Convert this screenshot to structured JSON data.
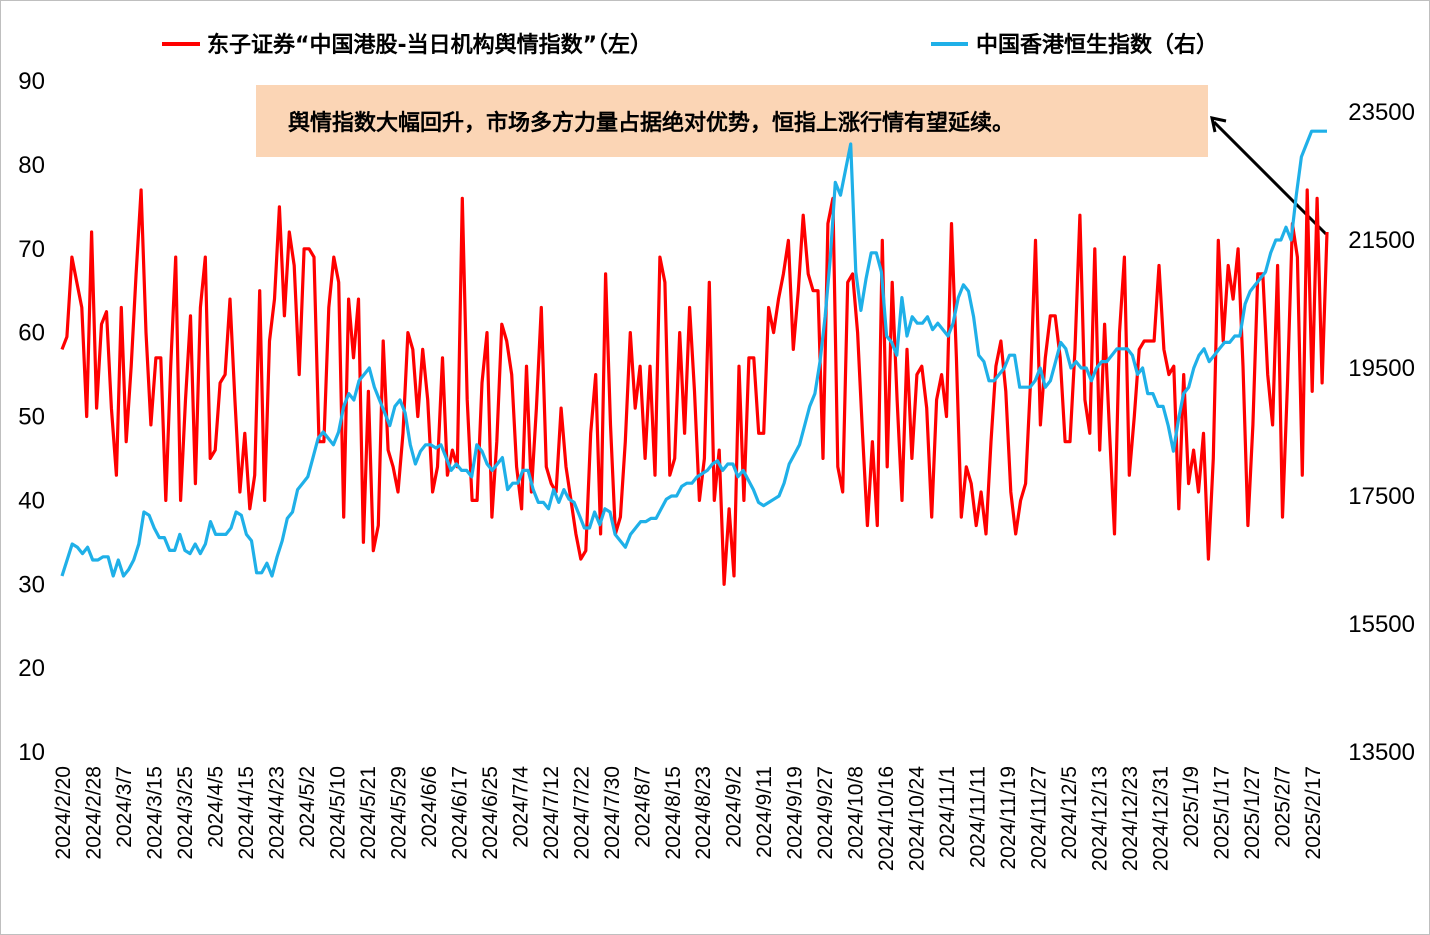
{
  "chart_data": {
    "type": "line",
    "title": "",
    "xlabel": "",
    "ylabel_left": "",
    "ylabel_right": "",
    "ylim_left": [
      10,
      90
    ],
    "yticks_left": [
      10,
      20,
      30,
      40,
      50,
      60,
      70,
      80,
      90
    ],
    "ylim_right": [
      13500,
      23500
    ],
    "yticks_right": [
      13500,
      15500,
      17500,
      19500,
      21500,
      23500
    ],
    "grid": false,
    "legend_position": "top",
    "x_tick_labels": [
      "2024/2/20",
      "2024/2/28",
      "2024/3/7",
      "2024/3/15",
      "2024/3/25",
      "2024/4/5",
      "2024/4/15",
      "2024/4/23",
      "2024/5/2",
      "2024/5/10",
      "2024/5/21",
      "2024/5/29",
      "2024/6/6",
      "2024/6/17",
      "2024/6/25",
      "2024/7/4",
      "2024/7/12",
      "2024/7/22",
      "2024/7/30",
      "2024/8/7",
      "2024/8/15",
      "2024/8/23",
      "2024/9/2",
      "2024/9/11",
      "2024/9/19",
      "2024/9/27",
      "2024/10/8",
      "2024/10/16",
      "2024/10/24",
      "2024/11/1",
      "2024/11/11",
      "2024/11/19",
      "2024/11/27",
      "2024/12/5",
      "2024/12/13",
      "2024/12/23",
      "2024/12/31",
      "2025/1/9",
      "2025/1/17",
      "2025/1/27",
      "2025/2/7",
      "2025/2/17"
    ],
    "series": [
      {
        "name": "东子证券“中国港股-当日机构舆情指数”（左）",
        "axis": "left",
        "color": "#ff0000",
        "values": [
          58,
          59.5,
          69,
          66,
          63,
          50,
          72,
          51,
          61,
          62.5,
          51,
          43,
          63,
          47,
          56,
          67,
          77,
          60,
          49,
          57,
          57,
          40,
          56,
          69,
          40,
          52,
          62,
          42,
          63,
          69,
          45,
          46,
          54,
          55,
          64,
          52,
          41,
          48,
          39,
          43,
          65,
          40,
          59,
          64,
          75,
          62,
          72,
          68,
          55,
          70,
          70,
          69,
          47,
          47,
          63,
          69,
          66,
          38,
          64,
          57,
          64,
          35,
          53,
          34,
          37,
          59,
          46,
          44,
          41,
          48,
          60,
          58,
          50,
          58,
          52,
          41,
          44,
          57,
          43,
          46,
          44,
          76,
          52,
          40,
          40,
          54,
          60,
          38,
          47,
          61,
          59,
          55,
          44,
          39,
          56,
          41,
          51,
          63,
          44,
          42,
          41,
          51,
          44,
          40,
          36,
          33,
          34,
          48,
          55,
          36,
          67,
          49,
          36,
          38,
          47,
          60,
          51,
          56,
          45,
          56,
          43,
          69,
          66,
          43,
          45,
          60,
          48,
          63,
          53,
          40,
          45,
          66,
          40,
          46,
          30,
          39,
          31,
          56,
          40,
          57,
          57,
          48,
          48,
          63,
          60,
          64,
          67,
          71,
          58,
          65,
          74,
          67,
          65,
          65,
          45,
          73,
          76,
          44,
          41,
          66,
          67,
          60,
          48,
          37,
          47,
          37,
          71,
          44,
          66,
          52,
          40,
          58,
          45,
          55,
          56,
          51,
          38,
          52,
          55,
          50,
          73,
          57,
          38,
          44,
          42,
          37,
          41,
          36,
          47,
          56,
          59,
          53,
          41,
          36,
          40,
          42,
          54,
          71,
          49,
          57,
          62,
          62,
          57,
          47,
          47,
          58,
          74,
          52,
          48,
          70,
          46,
          61,
          48,
          36,
          60,
          69,
          43,
          50,
          58,
          59,
          59,
          59,
          68,
          58,
          55,
          56,
          39,
          55,
          42,
          46,
          41,
          48,
          33,
          45,
          71,
          59,
          68,
          64,
          70,
          56,
          37,
          49,
          67,
          67,
          55,
          49,
          68,
          38,
          54,
          73,
          69,
          43,
          77,
          53,
          76,
          54,
          72
        ]
      },
      {
        "name": "中国香港恒生指数（右）",
        "axis": "right",
        "color": "#1fb0e8",
        "values": [
          16250,
          16500,
          16750,
          16700,
          16600,
          16700,
          16500,
          16500,
          16550,
          16550,
          16250,
          16500,
          16250,
          16350,
          16500,
          16750,
          17250,
          17200,
          17000,
          16850,
          16850,
          16650,
          16650,
          16900,
          16650,
          16600,
          16750,
          16600,
          16750,
          17100,
          16900,
          16900,
          16900,
          17000,
          17250,
          17200,
          16900,
          16800,
          16300,
          16300,
          16450,
          16250,
          16550,
          16800,
          17150,
          17250,
          17600,
          17700,
          17800,
          18100,
          18400,
          18500,
          18400,
          18300,
          18500,
          18900,
          19100,
          19000,
          19300,
          19400,
          19500,
          19200,
          19000,
          18800,
          18600,
          18900,
          19000,
          18800,
          18300,
          18000,
          18200,
          18300,
          18300,
          18250,
          18300,
          18100,
          17900,
          18000,
          17900,
          17900,
          17800,
          18300,
          18200,
          18000,
          17900,
          18000,
          18100,
          17600,
          17700,
          17700,
          17900,
          17900,
          17600,
          17400,
          17400,
          17300,
          17600,
          17400,
          17600,
          17450,
          17400,
          17200,
          17000,
          17000,
          17250,
          17050,
          17300,
          17250,
          16900,
          16800,
          16700,
          16900,
          17000,
          17100,
          17100,
          17150,
          17150,
          17300,
          17450,
          17500,
          17500,
          17650,
          17700,
          17700,
          17800,
          17850,
          17900,
          18000,
          18050,
          17900,
          18000,
          18000,
          17800,
          17900,
          17750,
          17600,
          17400,
          17350,
          17400,
          17450,
          17500,
          17700,
          18000,
          18150,
          18300,
          18600,
          18900,
          19100,
          19600,
          20300,
          21200,
          22400,
          22200,
          22600,
          23000,
          21000,
          20400,
          20900,
          21300,
          21300,
          21000,
          20000,
          19900,
          19700,
          20600,
          20000,
          20300,
          20200,
          20200,
          20300,
          20100,
          20200,
          20100,
          20000,
          20200,
          20600,
          20800,
          20700,
          20300,
          19700,
          19600,
          19300,
          19300,
          19400,
          19500,
          19700,
          19700,
          19200,
          19200,
          19200,
          19300,
          19500,
          19200,
          19300,
          19600,
          19900,
          19800,
          19500,
          19600,
          19500,
          19500,
          19300,
          19500,
          19600,
          19600,
          19700,
          19800,
          19800,
          19800,
          19700,
          19400,
          19500,
          19100,
          19100,
          18900,
          18900,
          18600,
          18200,
          18700,
          19100,
          19200,
          19500,
          19700,
          19800,
          19600,
          19700,
          19800,
          19900,
          19900,
          20000,
          20000,
          20500,
          20700,
          20800,
          20900,
          21000,
          21300,
          21500,
          21500,
          21700,
          21500,
          22200,
          22800,
          23000,
          23200,
          23200,
          23200,
          23200
        ]
      }
    ],
    "annotation": {
      "text": "舆情指数大幅回升，市场多方力量占据绝对优势，恒指上涨行情有望延续。",
      "box_color": "#fbd5b5"
    }
  }
}
